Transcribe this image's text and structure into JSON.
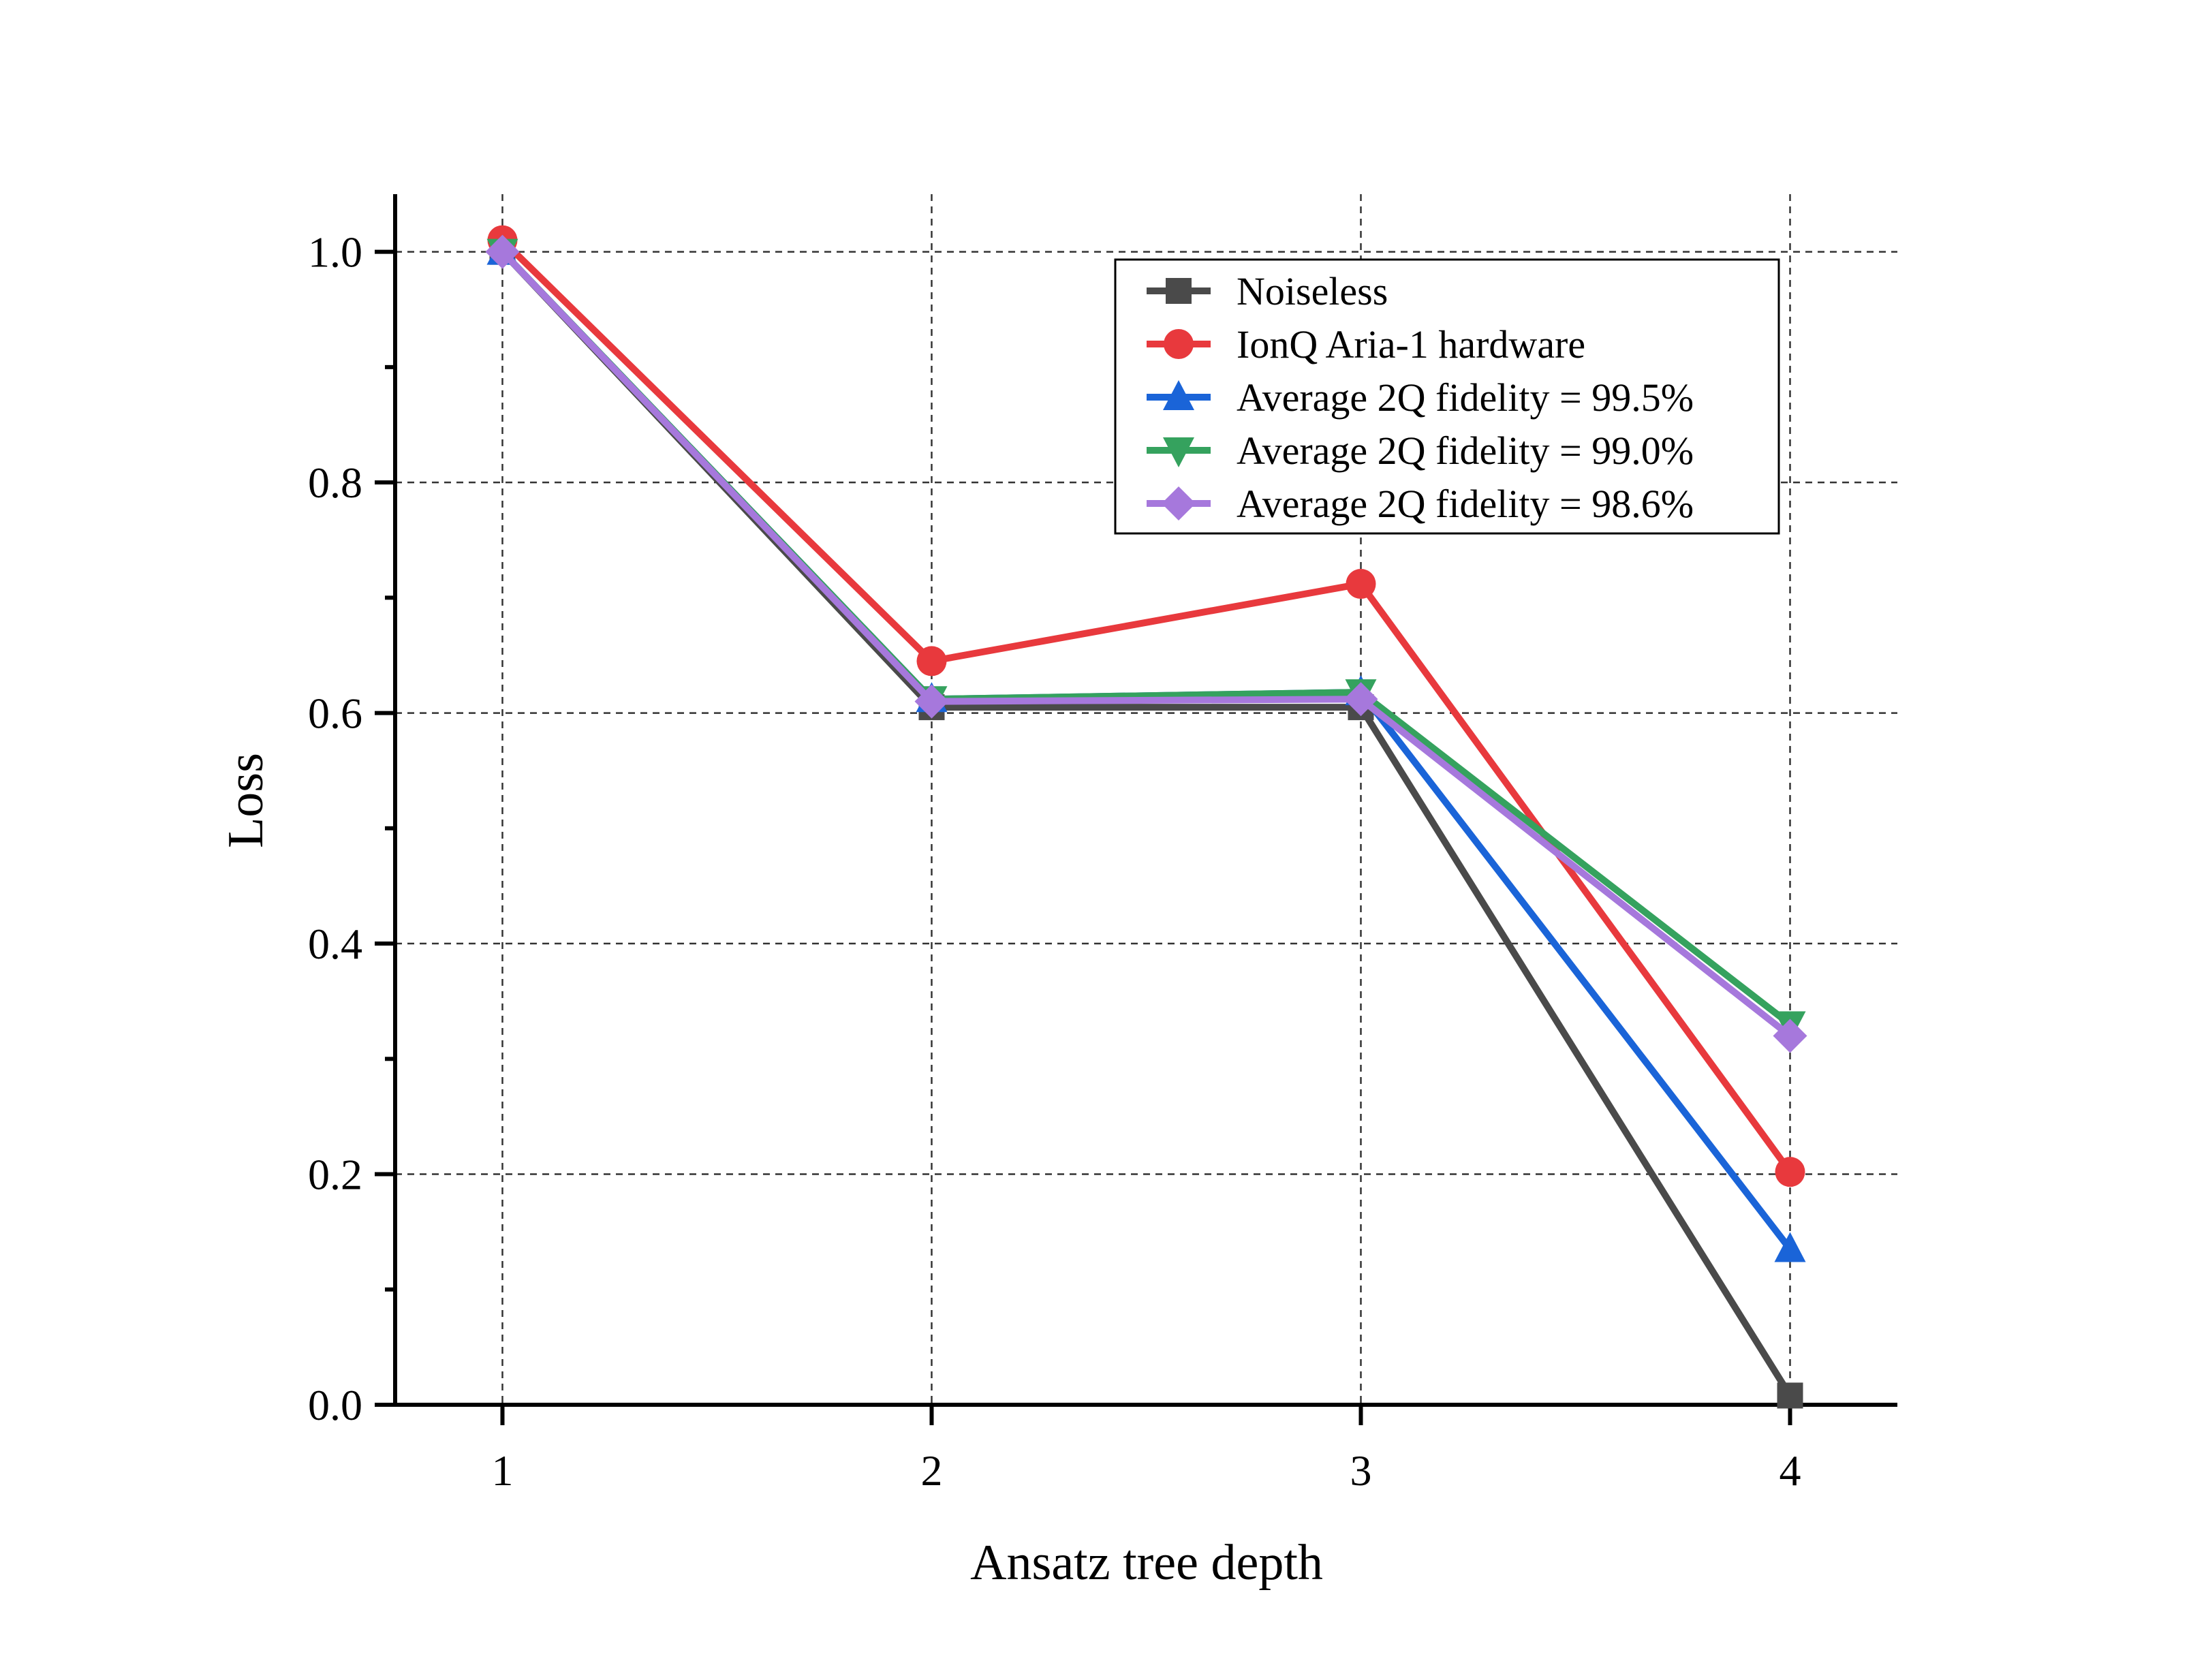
{
  "chart_data": {
    "type": "line",
    "title": "",
    "xlabel": "Ansatz tree depth",
    "ylabel": "Loss",
    "x": [
      1,
      2,
      3,
      4
    ],
    "xticks": [
      "1",
      "2",
      "3",
      "4"
    ],
    "yticks": [
      "0.0",
      "0.2",
      "0.4",
      "0.6",
      "0.8",
      "1.0"
    ],
    "xlim": [
      0.75,
      4.25
    ],
    "ylim": [
      0.0,
      1.05
    ],
    "grid": true,
    "legend_position": "top-right",
    "series": [
      {
        "name": "Noiseless",
        "values": [
          1.0,
          0.605,
          0.605,
          0.008
        ],
        "color": "#4a4a4a",
        "marker": "square"
      },
      {
        "name": "IonQ Aria-1 hardware",
        "values": [
          1.01,
          0.645,
          0.712,
          0.202
        ],
        "color": "#e8393d",
        "marker": "circle"
      },
      {
        "name": "Average 2Q fidelity = 99.5%",
        "values": [
          1.0,
          0.612,
          0.618,
          0.135
        ],
        "color": "#1a64d8",
        "marker": "triangle-up"
      },
      {
        "name": "Average 2Q fidelity = 99.0%",
        "values": [
          1.0,
          0.612,
          0.618,
          0.33
        ],
        "color": "#35a25e",
        "marker": "triangle-down"
      },
      {
        "name": "Average 2Q fidelity = 98.6%",
        "values": [
          1.0,
          0.61,
          0.612,
          0.32
        ],
        "color": "#a678dc",
        "marker": "diamond"
      }
    ]
  }
}
